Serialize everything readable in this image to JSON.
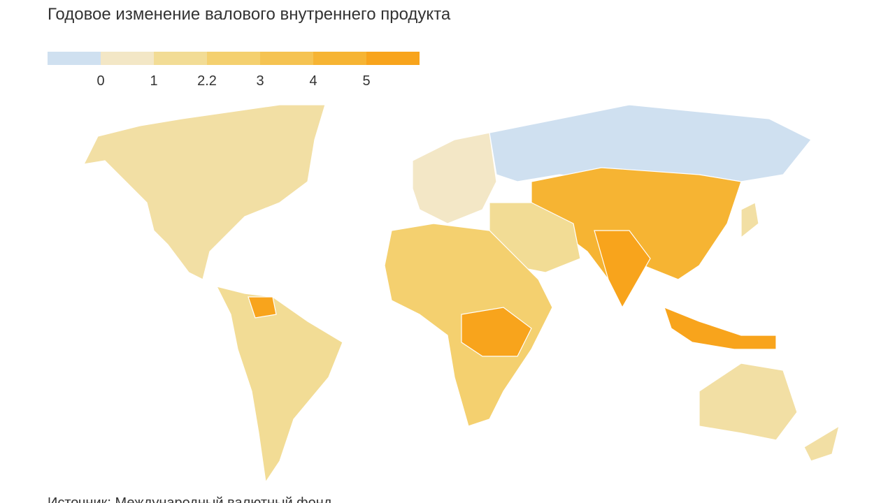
{
  "title": "Годовое изменение валового внутреннего продукта",
  "legend": {
    "colors": [
      "#cfe0f0",
      "#f3e7c6",
      "#f2dc95",
      "#f4d06f",
      "#f5c352",
      "#f6b433",
      "#f8a41c"
    ],
    "ticks": [
      0,
      1,
      2.2,
      3,
      4,
      5
    ]
  },
  "source": "Источник: Международный валютный фонд"
}
